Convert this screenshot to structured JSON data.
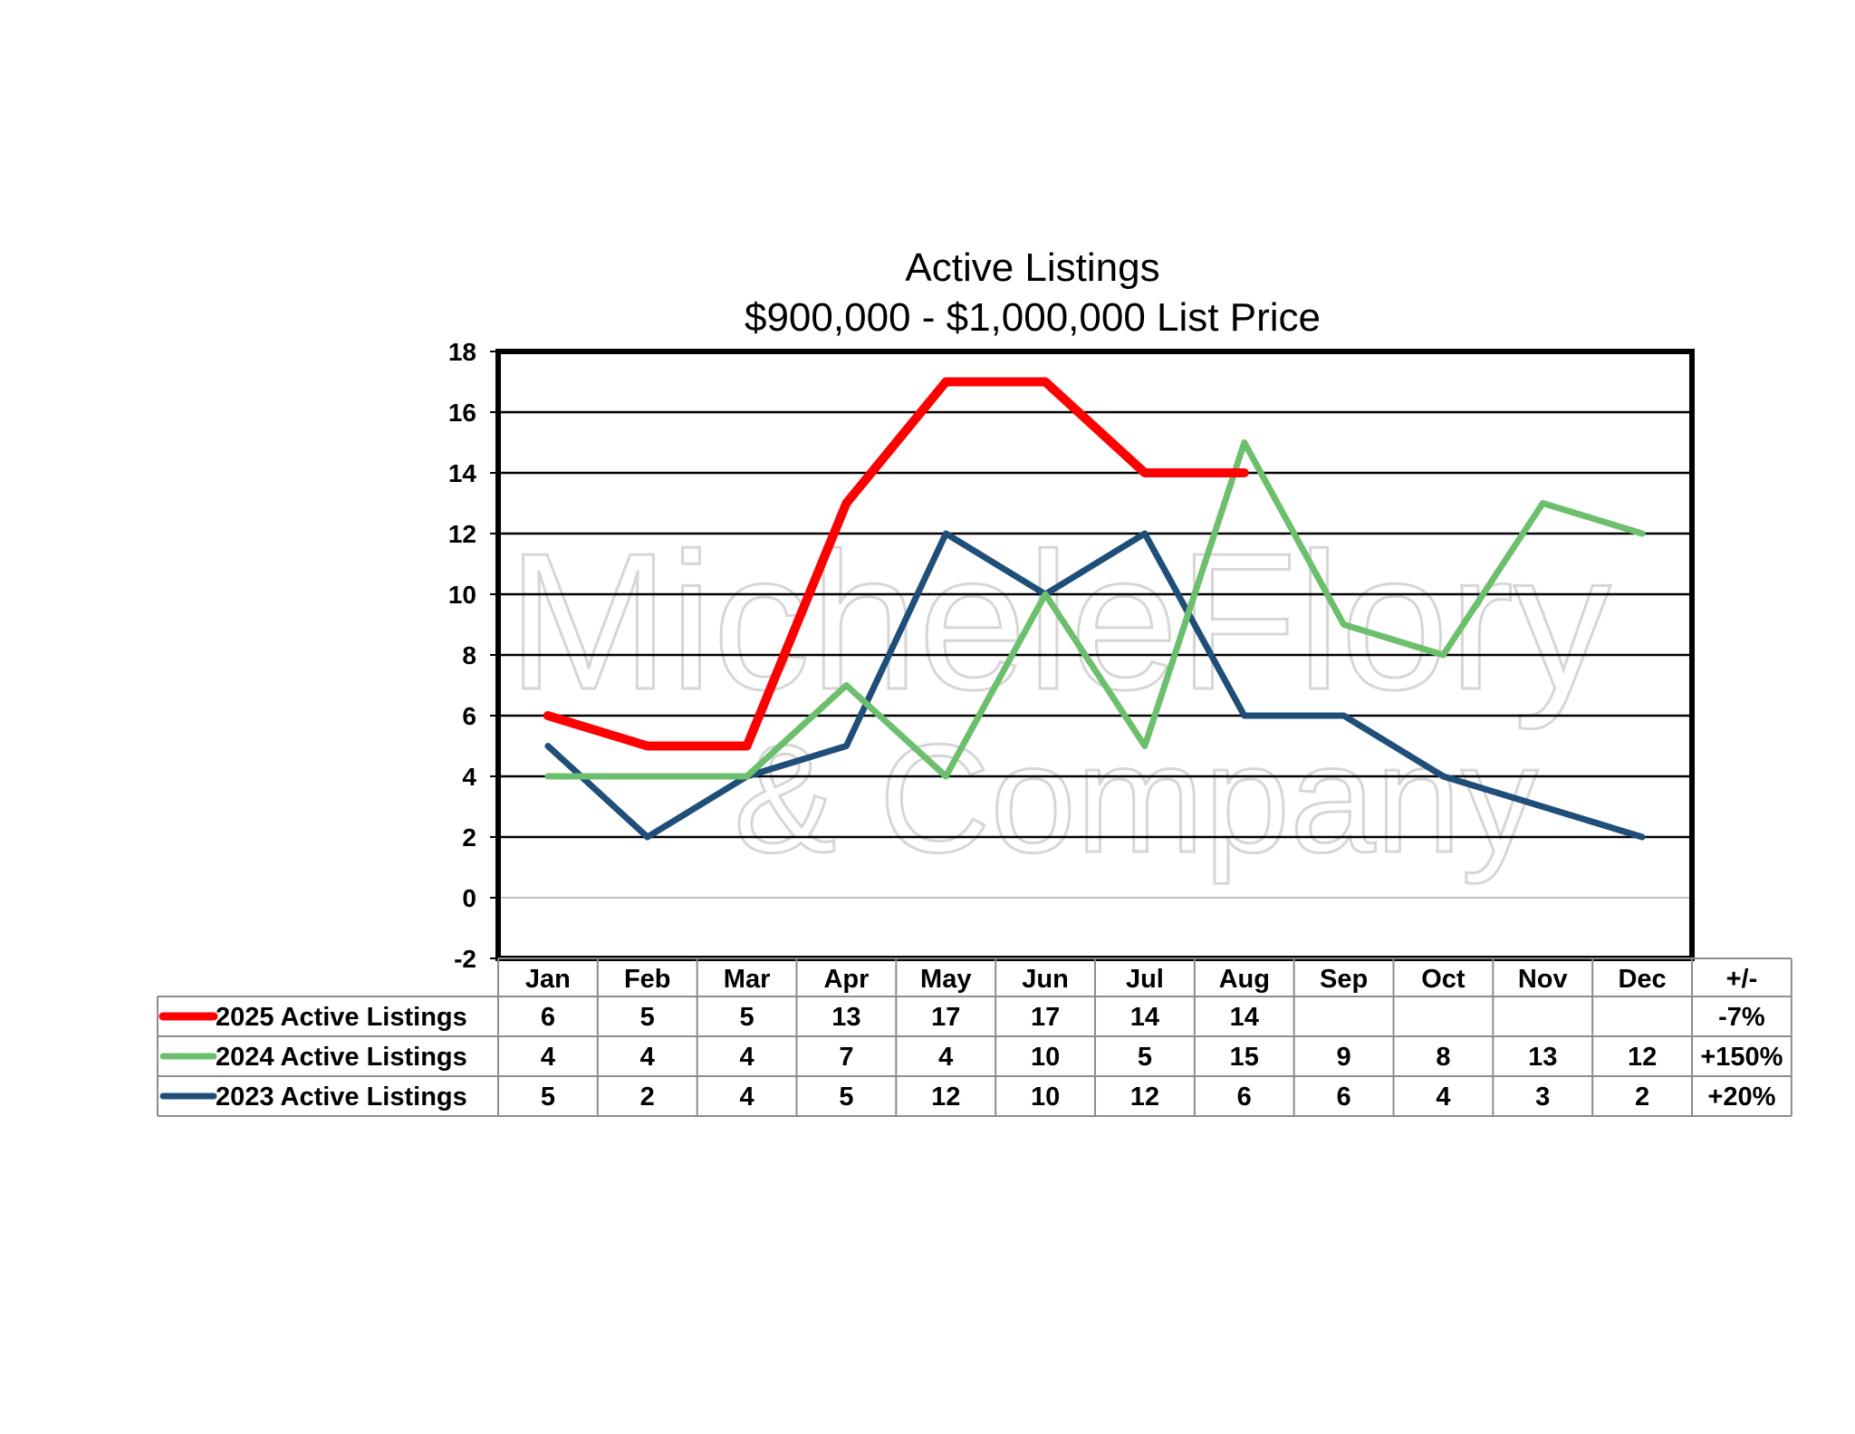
{
  "chart_data": {
    "type": "line",
    "title": "Active Listings",
    "subtitle": "$900,000 - $1,000,000 List Price",
    "categories": [
      "Jan",
      "Feb",
      "Mar",
      "Apr",
      "May",
      "Jun",
      "Jul",
      "Aug",
      "Sep",
      "Oct",
      "Nov",
      "Dec"
    ],
    "ylim": [
      -2,
      18
    ],
    "yticks": [
      -2,
      0,
      2,
      4,
      6,
      8,
      10,
      12,
      14,
      16,
      18
    ],
    "grid": true,
    "legend_position": "data-table-left",
    "change_header": "+/-",
    "series": [
      {
        "name": "2025 Active Listings",
        "color": "#ff0000",
        "values": [
          6,
          5,
          5,
          13,
          17,
          17,
          14,
          14,
          null,
          null,
          null,
          null
        ],
        "change": "-7%"
      },
      {
        "name": "2024 Active Listings",
        "color": "#6cbf6c",
        "values": [
          4,
          4,
          4,
          7,
          4,
          10,
          5,
          15,
          9,
          8,
          13,
          12
        ],
        "change": "+150%"
      },
      {
        "name": "2023 Active Listings",
        "color": "#1f4e79",
        "values": [
          5,
          2,
          4,
          5,
          12,
          10,
          12,
          6,
          6,
          4,
          3,
          2
        ],
        "change": "+20%"
      }
    ]
  },
  "watermark": {
    "line1": "MicheleFlory",
    "line2": "& Company"
  }
}
